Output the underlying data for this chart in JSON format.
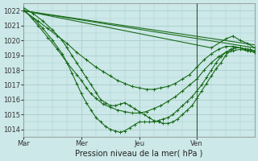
{
  "title": "",
  "xlabel": "Pression niveau de la mer( hPa )",
  "ylabel": "",
  "background_color": "#cce8e8",
  "grid_color": "#aacccc",
  "line_color": "#1a6b1a",
  "xlim": [
    0,
    96
  ],
  "ylim": [
    1013.5,
    1022.5
  ],
  "yticks": [
    1014,
    1015,
    1016,
    1017,
    1018,
    1019,
    1020,
    1021,
    1022
  ],
  "xtick_positions": [
    0,
    24,
    48,
    72
  ],
  "xtick_labels": [
    "Mar",
    "Mer",
    "Jeu",
    "Ven"
  ],
  "vlines": [
    72
  ],
  "series": [
    {
      "x": [
        0,
        96
      ],
      "y": [
        1022.0,
        1019.5
      ],
      "style": "plain"
    },
    {
      "x": [
        0,
        96
      ],
      "y": [
        1022.0,
        1019.7
      ],
      "style": "plain"
    },
    {
      "x": [
        0,
        78,
        84,
        87,
        90,
        93,
        96
      ],
      "y": [
        1022.0,
        1019.5,
        1020.1,
        1020.3,
        1020.0,
        1019.8,
        1019.5
      ],
      "style": "marker"
    },
    {
      "x": [
        0,
        6,
        10,
        14,
        18,
        22,
        26,
        30,
        33,
        36,
        39,
        42,
        45,
        48,
        51,
        54,
        57,
        60,
        63,
        66,
        69,
        72,
        75,
        78,
        81,
        84,
        87,
        90,
        93,
        96
      ],
      "y": [
        1022.0,
        1021.3,
        1020.8,
        1020.3,
        1019.8,
        1019.2,
        1018.7,
        1018.2,
        1017.9,
        1017.6,
        1017.3,
        1017.1,
        1016.9,
        1016.8,
        1016.7,
        1016.7,
        1016.8,
        1016.9,
        1017.1,
        1017.4,
        1017.7,
        1018.2,
        1018.7,
        1019.1,
        1019.4,
        1019.6,
        1019.6,
        1019.5,
        1019.4,
        1019.3
      ],
      "style": "marker"
    },
    {
      "x": [
        0,
        6,
        10,
        14,
        18,
        22,
        24,
        26,
        28,
        30,
        33,
        36,
        39,
        42,
        45,
        48,
        51,
        54,
        57,
        60,
        63,
        66,
        69,
        72,
        75,
        78,
        81,
        84,
        87,
        90,
        93,
        96
      ],
      "y": [
        1022.1,
        1021.0,
        1020.2,
        1019.4,
        1018.5,
        1017.7,
        1017.3,
        1016.8,
        1016.4,
        1016.1,
        1015.7,
        1015.5,
        1015.3,
        1015.2,
        1015.1,
        1015.1,
        1015.2,
        1015.4,
        1015.6,
        1015.9,
        1016.2,
        1016.6,
        1017.0,
        1017.4,
        1018.0,
        1018.5,
        1018.9,
        1019.2,
        1019.3,
        1019.4,
        1019.3,
        1019.2
      ],
      "style": "marker"
    },
    {
      "x": [
        0,
        4,
        8,
        12,
        16,
        18,
        20,
        22,
        24,
        26,
        28,
        30,
        32,
        34,
        36,
        38,
        40,
        42,
        44,
        46,
        48,
        50,
        52,
        54,
        56,
        58,
        60,
        62,
        64,
        66,
        68,
        70,
        72,
        74,
        76,
        78,
        80,
        82,
        84,
        86,
        88,
        90,
        92,
        94,
        96
      ],
      "y": [
        1022.2,
        1021.8,
        1021.3,
        1020.7,
        1020.0,
        1019.5,
        1019.0,
        1018.5,
        1018.0,
        1017.5,
        1017.0,
        1016.5,
        1016.0,
        1015.8,
        1015.6,
        1015.6,
        1015.7,
        1015.8,
        1015.6,
        1015.4,
        1015.2,
        1015.0,
        1014.8,
        1014.6,
        1014.5,
        1014.4,
        1014.4,
        1014.5,
        1014.7,
        1015.0,
        1015.3,
        1015.6,
        1016.1,
        1016.6,
        1017.1,
        1017.6,
        1018.1,
        1018.5,
        1019.0,
        1019.3,
        1019.5,
        1019.5,
        1019.4,
        1019.4,
        1019.3
      ],
      "style": "marker"
    },
    {
      "x": [
        0,
        4,
        8,
        12,
        16,
        18,
        20,
        22,
        24,
        26,
        28,
        30,
        32,
        34,
        36,
        38,
        40,
        42,
        44,
        46,
        48,
        50,
        52,
        54,
        56,
        58,
        60,
        62,
        64,
        66,
        68,
        70,
        72,
        74,
        76,
        78,
        80,
        82,
        84,
        86,
        88,
        90,
        92,
        94,
        96
      ],
      "y": [
        1022.0,
        1021.5,
        1020.8,
        1020.0,
        1019.1,
        1018.5,
        1017.8,
        1017.1,
        1016.4,
        1015.8,
        1015.3,
        1014.8,
        1014.5,
        1014.2,
        1014.0,
        1013.9,
        1013.8,
        1013.9,
        1014.1,
        1014.3,
        1014.5,
        1014.5,
        1014.5,
        1014.5,
        1014.6,
        1014.7,
        1014.8,
        1015.0,
        1015.3,
        1015.6,
        1015.9,
        1016.2,
        1016.6,
        1017.0,
        1017.5,
        1018.0,
        1018.5,
        1018.9,
        1019.2,
        1019.4,
        1019.5,
        1019.5,
        1019.4,
        1019.3,
        1019.2
      ],
      "style": "marker"
    }
  ]
}
